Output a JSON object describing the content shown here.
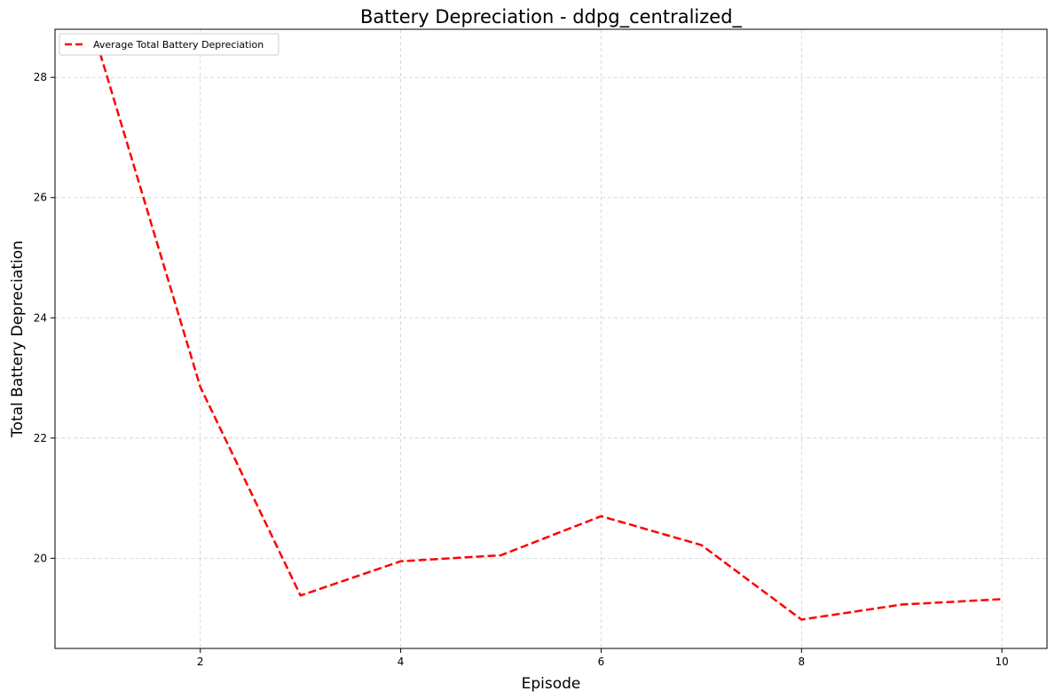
{
  "chart_data": {
    "type": "line",
    "title": "Battery Depreciation - ddpg_centralized_",
    "xlabel": "Episode",
    "ylabel": "Total Battery Depreciation",
    "xlim": [
      0.55,
      10.45
    ],
    "ylim": [
      18.5,
      28.8
    ],
    "x_ticks": [
      2,
      4,
      6,
      8,
      10
    ],
    "y_ticks": [
      20,
      22,
      24,
      26,
      28
    ],
    "grid": true,
    "legend_position": "top-left",
    "series": [
      {
        "name": "Average Total Battery Depreciation",
        "color": "#ff0000",
        "line_style": "dashed",
        "x": [
          1,
          2,
          3,
          4,
          5,
          6,
          7,
          8,
          9,
          10
        ],
        "y": [
          28.4,
          22.85,
          19.38,
          19.95,
          20.05,
          20.7,
          20.22,
          18.98,
          19.23,
          19.32
        ]
      }
    ]
  }
}
